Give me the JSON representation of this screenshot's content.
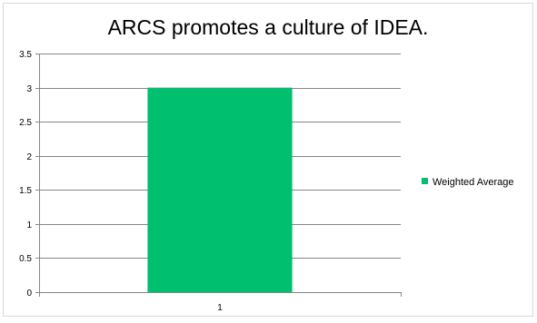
{
  "chart_data": {
    "type": "bar",
    "title": "ARCS promotes a culture of IDEA.",
    "categories": [
      "1"
    ],
    "series": [
      {
        "name": "Weighted Average",
        "values": [
          3
        ],
        "color": "#00bf6f"
      }
    ],
    "xlabel": "",
    "ylabel": "",
    "ylim": [
      0,
      3.5
    ],
    "yticks": [
      "0",
      "0.5",
      "1",
      "1.5",
      "2",
      "2.5",
      "3",
      "3.5"
    ],
    "grid": true,
    "legend_position": "right"
  }
}
